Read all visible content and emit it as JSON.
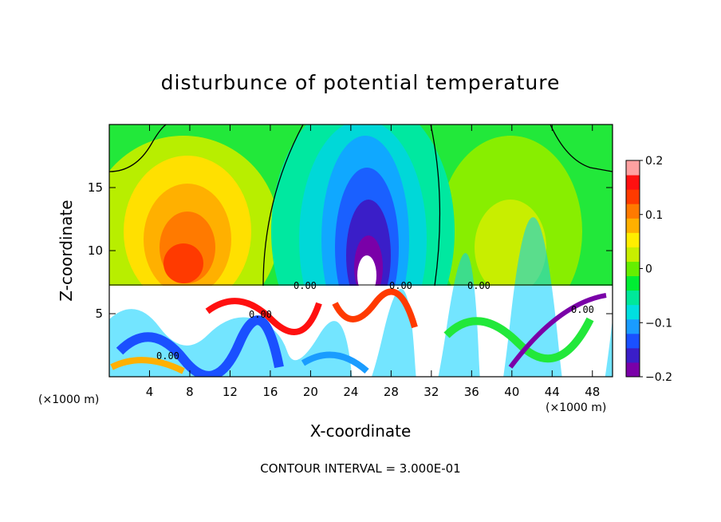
{
  "chart_data": {
    "type": "heatmap",
    "title": "disturbunce of potential temperature",
    "xlabel": "X-coordinate",
    "ylabel": "Z-coordinate",
    "x_unit": "(×1000 m)",
    "z_unit": "(×1000 m)",
    "xlim": [
      0,
      50
    ],
    "ylim": [
      0,
      20
    ],
    "x_ticks": [
      "4",
      "8",
      "12",
      "16",
      "20",
      "24",
      "28",
      "32",
      "36",
      "40",
      "44",
      "48"
    ],
    "y_ticks": [
      "5",
      "10",
      "15"
    ],
    "colorbar": {
      "range": [
        -0.2,
        0.2
      ],
      "tick_labels": [
        "0.2",
        "0.1",
        "0",
        "−0.1",
        "−0.2"
      ],
      "colors": [
        "#7a00a8",
        "#3a1ec8",
        "#1a50ff",
        "#1a9cff",
        "#00e0e0",
        "#00e89a",
        "#00ee33",
        "#66ee00",
        "#c8ee00",
        "#ffee00",
        "#ffb000",
        "#ff7a00",
        "#ff3a00",
        "#ff1010",
        "#ffa0a0"
      ]
    },
    "contour_labels": [
      "0.00",
      "0.00",
      "0.00",
      "0.00",
      "0.00",
      "0.00"
    ],
    "footer": "CONTOUR INTERVAL = 3.000E-01"
  }
}
